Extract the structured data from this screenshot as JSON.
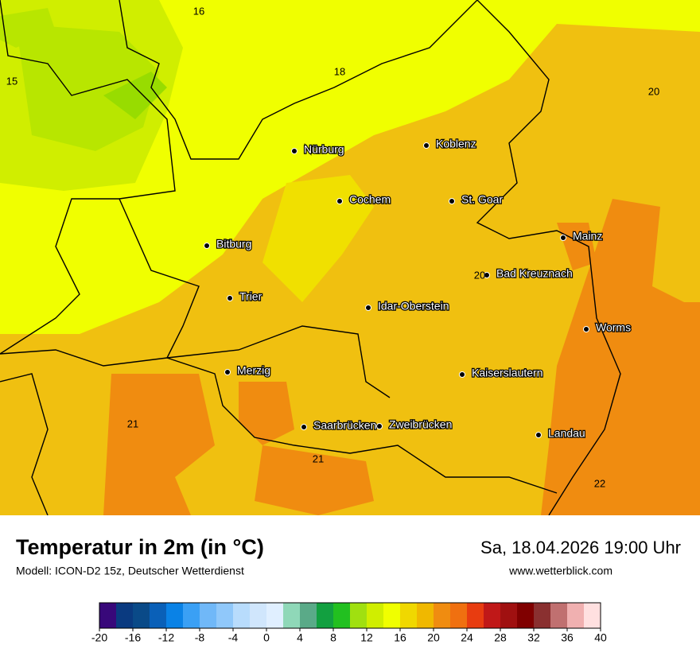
{
  "header": {
    "title": "Temperatur in 2m (in °C)",
    "model": "Modell: ICON-D2 15z, Deutscher Wetterdienst",
    "date": "Sa, 18.04.2026 19:00 Uhr",
    "url": "www.wetterblick.com"
  },
  "map": {
    "cities": [
      "Nürburg",
      "Koblenz",
      "Cochem",
      "St. Goar",
      "Mainz",
      "Bitburg",
      "Bad Kreuznach",
      "Trier",
      "Idar-Oberstein",
      "Worms",
      "Merzig",
      "Kaiserslautern",
      "Saarbrücken",
      "Zweibrücken",
      "Landau"
    ],
    "contour_labels": [
      16,
      18,
      15,
      20,
      20,
      21,
      21,
      22
    ]
  },
  "colorbar": {
    "min": -20,
    "max": 40,
    "ticks": [
      -20,
      -16,
      -12,
      -8,
      -4,
      0,
      4,
      8,
      12,
      16,
      20,
      24,
      28,
      32,
      36,
      40
    ],
    "colors": [
      "#38087a",
      "#0a3a80",
      "#0a4a88",
      "#0a60b8",
      "#0a82e6",
      "#3aa0f5",
      "#70b8f8",
      "#90c8fa",
      "#b8dcfc",
      "#d0e6fc",
      "#e0efff",
      "#8fd8b8",
      "#5aaa88",
      "#12a040",
      "#22c020",
      "#a0e010",
      "#d0ee00",
      "#f0ff00",
      "#f0d800",
      "#f0b800",
      "#f08c10",
      "#f07010",
      "#e83c10",
      "#c01818",
      "#a01010",
      "#800000",
      "#8a3030",
      "#c07070",
      "#f0b0b0",
      "#ffe0e0"
    ]
  }
}
